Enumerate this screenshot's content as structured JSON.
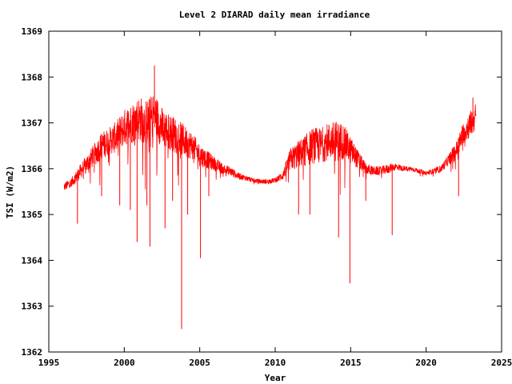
{
  "chart_data": {
    "type": "line",
    "title": "Level 2 DIARAD daily mean irradiance",
    "xlabel": "Year",
    "ylabel": "TSI (W/m2)",
    "xlim": [
      1995,
      2025
    ],
    "ylim": [
      1362,
      1369
    ],
    "x_ticks": [
      1995,
      2000,
      2005,
      2010,
      2015,
      2020,
      2025
    ],
    "y_ticks": [
      1362,
      1363,
      1364,
      1365,
      1366,
      1367,
      1368,
      1369
    ],
    "grid": false,
    "legend": "none",
    "series": [
      {
        "color": "#ff0000",
        "trend": {
          "x": [
            1996.0,
            1996.5,
            1997.0,
            1997.5,
            1998.0,
            1998.5,
            1999.0,
            1999.5,
            2000.0,
            2000.5,
            2001.0,
            2001.5,
            2002.0,
            2002.5,
            2003.0,
            2003.5,
            2004.0,
            2004.5,
            2005.0,
            2005.5,
            2006.0,
            2006.5,
            2007.0,
            2007.5,
            2008.0,
            2008.5,
            2009.0,
            2009.5,
            2010.0,
            2010.5,
            2011.0,
            2011.5,
            2012.0,
            2012.5,
            2013.0,
            2013.5,
            2014.0,
            2014.5,
            2015.0,
            2015.5,
            2016.0,
            2016.5,
            2017.0,
            2017.5,
            2018.0,
            2018.5,
            2019.0,
            2019.5,
            2020.0,
            2020.5,
            2021.0,
            2021.5,
            2022.0,
            2022.5,
            2023.0,
            2023.3
          ],
          "y": [
            1365.6,
            1365.7,
            1365.9,
            1366.1,
            1366.3,
            1366.5,
            1366.6,
            1366.7,
            1366.9,
            1367.0,
            1367.1,
            1367.0,
            1367.2,
            1366.9,
            1366.8,
            1366.7,
            1366.6,
            1366.5,
            1366.3,
            1366.2,
            1366.1,
            1366.0,
            1365.95,
            1365.85,
            1365.8,
            1365.75,
            1365.72,
            1365.72,
            1365.75,
            1365.85,
            1366.2,
            1366.3,
            1366.4,
            1366.5,
            1366.5,
            1366.6,
            1366.6,
            1366.6,
            1366.4,
            1366.2,
            1366.0,
            1365.95,
            1365.95,
            1366.0,
            1366.05,
            1366.0,
            1366.0,
            1365.95,
            1365.9,
            1365.95,
            1366.0,
            1366.2,
            1366.4,
            1366.8,
            1367.0,
            1367.15
          ],
          "noise": [
            0.1,
            0.1,
            0.15,
            0.2,
            0.25,
            0.3,
            0.3,
            0.35,
            0.4,
            0.45,
            0.5,
            0.5,
            0.5,
            0.45,
            0.4,
            0.4,
            0.35,
            0.3,
            0.25,
            0.2,
            0.15,
            0.12,
            0.1,
            0.08,
            0.06,
            0.05,
            0.05,
            0.05,
            0.06,
            0.1,
            0.25,
            0.3,
            0.35,
            0.4,
            0.4,
            0.4,
            0.45,
            0.4,
            0.3,
            0.2,
            0.12,
            0.1,
            0.1,
            0.1,
            0.08,
            0.06,
            0.05,
            0.05,
            0.05,
            0.06,
            0.08,
            0.12,
            0.2,
            0.25,
            0.3,
            0.3
          ]
        },
        "dips": [
          {
            "x": 1996.9,
            "y": 1364.8
          },
          {
            "x": 1998.5,
            "y": 1365.4
          },
          {
            "x": 1999.7,
            "y": 1365.2
          },
          {
            "x": 2000.4,
            "y": 1365.1
          },
          {
            "x": 2000.85,
            "y": 1364.4
          },
          {
            "x": 2001.5,
            "y": 1365.2
          },
          {
            "x": 2001.7,
            "y": 1364.3
          },
          {
            "x": 2002.0,
            "y": 1368.25
          },
          {
            "x": 2002.7,
            "y": 1364.7
          },
          {
            "x": 2003.2,
            "y": 1365.3
          },
          {
            "x": 2003.8,
            "y": 1362.5
          },
          {
            "x": 2004.2,
            "y": 1365.0
          },
          {
            "x": 2005.05,
            "y": 1364.05
          },
          {
            "x": 2005.6,
            "y": 1365.4
          },
          {
            "x": 2011.55,
            "y": 1365.0
          },
          {
            "x": 2012.3,
            "y": 1365.0
          },
          {
            "x": 2014.2,
            "y": 1364.5
          },
          {
            "x": 2014.95,
            "y": 1363.5
          },
          {
            "x": 2016.0,
            "y": 1365.3
          },
          {
            "x": 2017.75,
            "y": 1364.55
          },
          {
            "x": 2022.15,
            "y": 1365.4
          },
          {
            "x": 2023.1,
            "y": 1367.55
          }
        ]
      }
    ]
  }
}
